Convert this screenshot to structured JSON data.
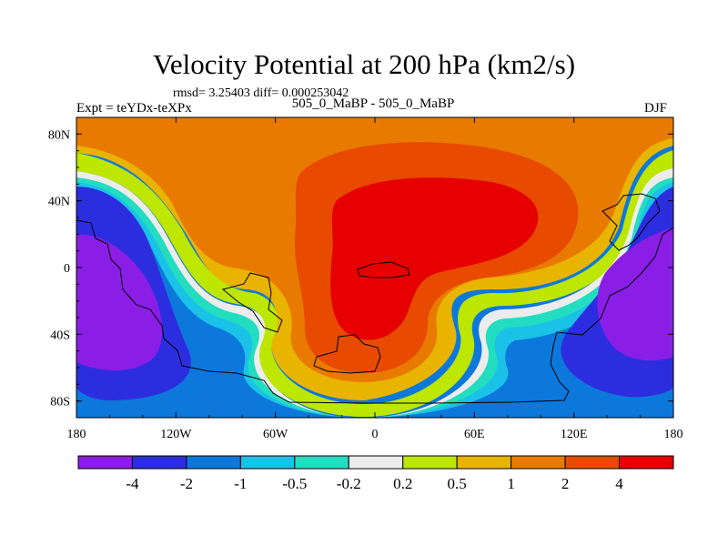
{
  "chart_data": {
    "type": "heatmap",
    "title": "Velocity Potential at 200 hPa (km2/s)",
    "subtitle": "rmsd= 3.25403 diff= 0.000253042",
    "left_label": "Expt = teYDx-teXPx",
    "center_label": "505_0_MaBP - 505_0_MaBP",
    "right_label": "DJF",
    "xlim": [
      -180,
      180
    ],
    "ylim": [
      -90,
      90
    ],
    "x_ticks": [
      {
        "value": -180,
        "label": "180"
      },
      {
        "value": -120,
        "label": "120W"
      },
      {
        "value": -60,
        "label": "60W"
      },
      {
        "value": 0,
        "label": "0"
      },
      {
        "value": 60,
        "label": "60E"
      },
      {
        "value": 120,
        "label": "120E"
      },
      {
        "value": 180,
        "label": "180"
      }
    ],
    "y_ticks": [
      {
        "value": 80,
        "label": "80N"
      },
      {
        "value": 40,
        "label": "40N"
      },
      {
        "value": 0,
        "label": "0"
      },
      {
        "value": -40,
        "label": "40S"
      },
      {
        "value": -80,
        "label": "80S"
      }
    ],
    "contour_levels": [
      -4,
      -2,
      -1,
      -0.5,
      -0.2,
      0.2,
      0.5,
      1,
      2,
      4
    ],
    "colorbar_labels": [
      "-4",
      "-2",
      "-1",
      "-0.5",
      "-0.2",
      "0.2",
      "0.5",
      "1",
      "2",
      "4"
    ],
    "colorbar_colors": [
      "#8a1ee6",
      "#2d2de0",
      "#0c78dc",
      "#1ac2e8",
      "#22ddc0",
      "#ececec",
      "#bde600",
      "#e8b400",
      "#e87a00",
      "#e84a00",
      "#e60000"
    ],
    "field_regions": [
      {
        "name": "negative-west-pacific-core",
        "center_lon": -160,
        "center_lat": -10,
        "value": -4.2
      },
      {
        "name": "negative-east-pacific-core",
        "center_lon": 165,
        "center_lat": 0,
        "value": -4.2
      },
      {
        "name": "positive-atlantic-africa-core",
        "center_lon": 10,
        "center_lat": 20,
        "value": 4.0
      }
    ]
  }
}
